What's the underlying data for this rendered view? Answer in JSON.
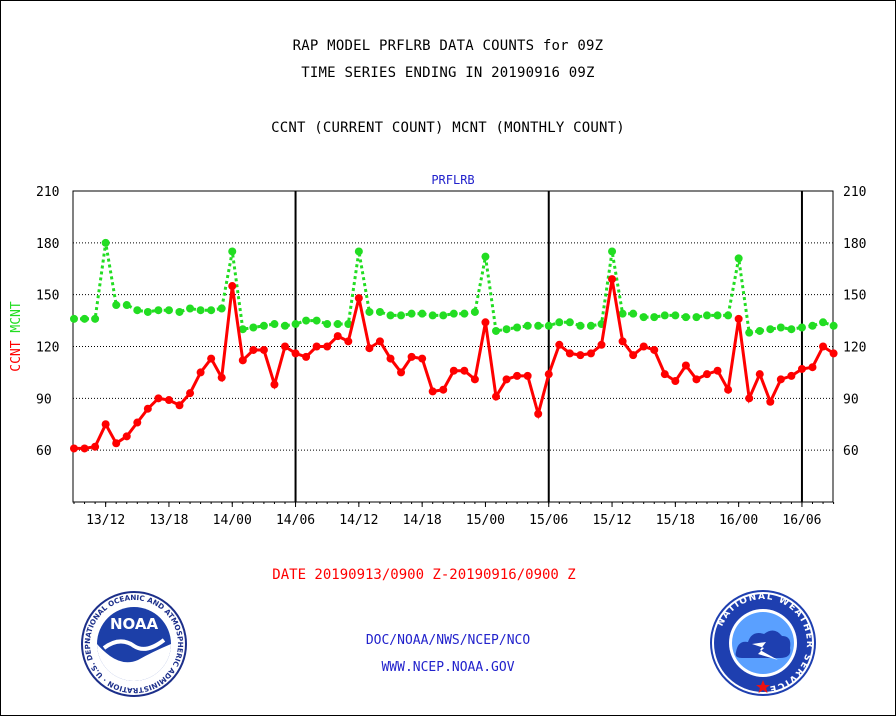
{
  "header": {
    "line1": "RAP MODEL PRFLRB DATA COUNTS for 09Z",
    "line2": "TIME SERIES ENDING IN 20190916 09Z",
    "line3": "CCNT (CURRENT COUNT) MCNT (MONTHLY COUNT)"
  },
  "chart_data": {
    "type": "line",
    "title": "PRFLRB",
    "ylabel_left": [
      "CCNT",
      "MCNT"
    ],
    "xlabel": "DATE 20190913/0900 Z-20190916/0900 Z",
    "ylim": [
      30,
      210
    ],
    "yticks": [
      60,
      90,
      120,
      150,
      180,
      210
    ],
    "xticks": [
      "13/12",
      "13/18",
      "14/00",
      "14/06",
      "14/12",
      "14/18",
      "15/00",
      "15/06",
      "15/12",
      "15/18",
      "16/00",
      "16/06"
    ],
    "grid": true,
    "colors": {
      "ccnt": "#ff0000",
      "mcnt": "#22dd22",
      "axis": "#000000",
      "title": "#2222cc"
    },
    "series": [
      {
        "name": "CCNT",
        "values": [
          61,
          61,
          62,
          75,
          64,
          68,
          76,
          84,
          90,
          89,
          86,
          93,
          105,
          113,
          102,
          155,
          112,
          118,
          118,
          98,
          120,
          116,
          114,
          120,
          120,
          126,
          123,
          148,
          119,
          123,
          113,
          105,
          114,
          113,
          94,
          95,
          106,
          106,
          101,
          134,
          91,
          101,
          103,
          103,
          81,
          104,
          121,
          116,
          115,
          116,
          121,
          159,
          123,
          115,
          120,
          118,
          104,
          100,
          109,
          101,
          104,
          106,
          95,
          136,
          90,
          104,
          88,
          101,
          103,
          107,
          108,
          120,
          116
        ]
      },
      {
        "name": "MCNT",
        "values": [
          136,
          136,
          136,
          180,
          144,
          144,
          141,
          140,
          141,
          141,
          140,
          142,
          141,
          141,
          142,
          175,
          130,
          131,
          132,
          133,
          132,
          133,
          135,
          135,
          133,
          133,
          133,
          175,
          140,
          140,
          138,
          138,
          139,
          139,
          138,
          138,
          139,
          139,
          140,
          172,
          129,
          130,
          131,
          132,
          132,
          132,
          134,
          134,
          132,
          132,
          133,
          175,
          139,
          139,
          137,
          137,
          138,
          138,
          137,
          137,
          138,
          138,
          138,
          171,
          128,
          129,
          130,
          131,
          130,
          131,
          132,
          134,
          132
        ]
      }
    ]
  },
  "footer": {
    "line1": "DOC/NOAA/NWS/NCEP/NCO",
    "line2": "WWW.NCEP.NOAA.GOV"
  },
  "logos": {
    "noaa": "NOAA",
    "noaa_ring": "NATIONAL OCEANIC AND ATMOSPHERIC ADMINISTRATION · U.S. DEPARTMENT OF COMMERCE ·",
    "nws_ring": "NATIONAL WEATHER SERVICE"
  }
}
